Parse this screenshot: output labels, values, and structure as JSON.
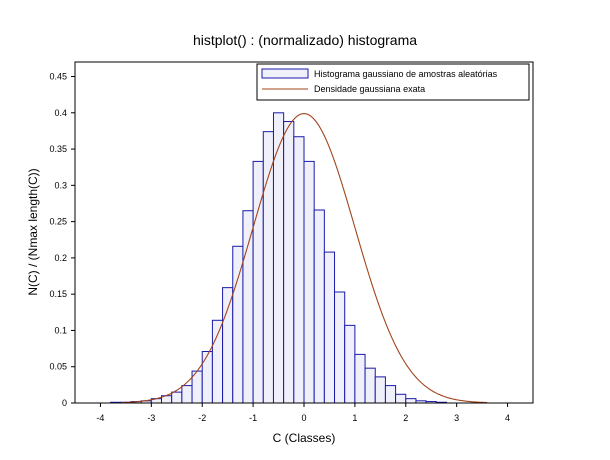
{
  "chart_data": {
    "type": "bar",
    "title": "histplot() : (normalizado) histograma",
    "xlabel": "C (Classes)",
    "ylabel": "N(C) / (Nmax length(C))",
    "xlim": [
      -4.5,
      4.5
    ],
    "ylim": [
      0,
      0.47
    ],
    "xticks": [
      "-4",
      "-3",
      "-2",
      "-1",
      "0",
      "1",
      "2",
      "3",
      "4"
    ],
    "yticks": [
      "0",
      "0.05",
      "0.1",
      "0.15",
      "0.2",
      "0.25",
      "0.3",
      "0.35",
      "0.4",
      "0.45"
    ],
    "bin_width": 0.2,
    "bins": [
      {
        "x0": -3.8,
        "value": 0.001
      },
      {
        "x0": -3.6,
        "value": 0.001
      },
      {
        "x0": -3.4,
        "value": 0.002
      },
      {
        "x0": -3.2,
        "value": 0.003
      },
      {
        "x0": -3.0,
        "value": 0.006
      },
      {
        "x0": -2.8,
        "value": 0.01
      },
      {
        "x0": -2.6,
        "value": 0.015
      },
      {
        "x0": -2.4,
        "value": 0.024
      },
      {
        "x0": -2.2,
        "value": 0.044
      },
      {
        "x0": -2.0,
        "value": 0.071
      },
      {
        "x0": -1.8,
        "value": 0.114
      },
      {
        "x0": -1.6,
        "value": 0.159
      },
      {
        "x0": -1.4,
        "value": 0.216
      },
      {
        "x0": -1.2,
        "value": 0.265
      },
      {
        "x0": -1.0,
        "value": 0.333
      },
      {
        "x0": -0.8,
        "value": 0.374
      },
      {
        "x0": -0.6,
        "value": 0.4
      },
      {
        "x0": -0.4,
        "value": 0.388
      },
      {
        "x0": -0.2,
        "value": 0.367
      },
      {
        "x0": 0.0,
        "value": 0.333
      },
      {
        "x0": 0.2,
        "value": 0.266
      },
      {
        "x0": 0.4,
        "value": 0.208
      },
      {
        "x0": 0.6,
        "value": 0.153
      },
      {
        "x0": 0.8,
        "value": 0.107
      },
      {
        "x0": 1.0,
        "value": 0.067
      },
      {
        "x0": 1.2,
        "value": 0.048
      },
      {
        "x0": 1.4,
        "value": 0.036
      },
      {
        "x0": 1.6,
        "value": 0.024
      },
      {
        "x0": 1.8,
        "value": 0.012
      },
      {
        "x0": 2.0,
        "value": 0.006
      },
      {
        "x0": 2.2,
        "value": 0.003
      },
      {
        "x0": 2.4,
        "value": 0.002
      },
      {
        "x0": 2.6,
        "value": 0.001
      }
    ],
    "series": [
      {
        "name": "Histograma gaussiano de amostras aleatórias",
        "kind": "histogram",
        "edge_color": "#1a1aaa",
        "fill_color": "#f0f0fa"
      },
      {
        "name": "Densidade gaussiana exata",
        "kind": "line",
        "color": "#a0451c",
        "function": "normal_pdf",
        "mean": 0,
        "std": 1,
        "x_range": [
          -3.6,
          3.6
        ]
      }
    ],
    "legend": {
      "position": "top-right"
    },
    "grid": false
  }
}
